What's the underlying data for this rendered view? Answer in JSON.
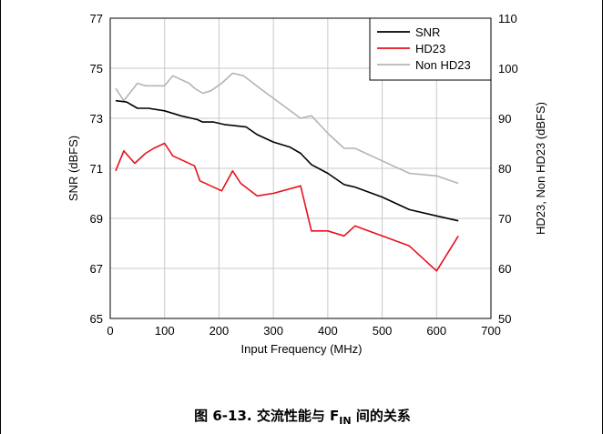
{
  "caption": {
    "prefix": "图 6-13. 交流性能与 F",
    "subscript": "IN",
    "suffix": " 间的关系"
  },
  "chart_data": {
    "type": "line",
    "xlabel": "Input Frequency (MHz)",
    "ylabel_left": "SNR (dBFS)",
    "ylabel_right": "HD23, Non HD23 (dBFS)",
    "xlim": [
      0,
      700
    ],
    "ylim_left": [
      65,
      77
    ],
    "ylim_right": [
      50,
      110
    ],
    "x_ticks": [
      0,
      100,
      200,
      300,
      400,
      500,
      600,
      700
    ],
    "y_ticks_left": [
      65,
      67,
      69,
      71,
      73,
      75,
      77
    ],
    "y_ticks_right": [
      50,
      60,
      70,
      80,
      90,
      100,
      110
    ],
    "grid": true,
    "legend_position": "top-right",
    "series": [
      {
        "name": "SNR",
        "axis": "left",
        "color": "#000000",
        "x": [
          10,
          30,
          50,
          70,
          100,
          130,
          160,
          170,
          190,
          210,
          230,
          250,
          270,
          300,
          330,
          350,
          370,
          400,
          430,
          450,
          500,
          550,
          600,
          640
        ],
        "y": [
          73.7,
          73.65,
          73.4,
          73.4,
          73.3,
          73.1,
          72.95,
          72.85,
          72.85,
          72.75,
          72.7,
          72.65,
          72.35,
          72.05,
          71.85,
          71.6,
          71.15,
          70.8,
          70.35,
          70.25,
          69.85,
          69.35,
          69.1,
          68.9
        ]
      },
      {
        "name": "HD23",
        "axis": "right",
        "color": "#e8101c",
        "x": [
          10,
          25,
          45,
          65,
          80,
          100,
          115,
          155,
          165,
          185,
          205,
          225,
          240,
          270,
          300,
          350,
          370,
          400,
          430,
          450,
          500,
          550,
          600,
          640
        ],
        "y": [
          79.5,
          83.5,
          81,
          83,
          84,
          85,
          82.5,
          80.5,
          77.5,
          76.5,
          75.5,
          79.5,
          77,
          74.5,
          75,
          76.5,
          67.5,
          67.5,
          66.5,
          68.5,
          66.5,
          64.5,
          59.5,
          66.5
        ]
      },
      {
        "name": "Non HD23",
        "axis": "right",
        "color": "#b4b4b4",
        "x": [
          10,
          25,
          50,
          65,
          85,
          100,
          115,
          145,
          155,
          170,
          185,
          205,
          225,
          245,
          275,
          300,
          325,
          350,
          370,
          400,
          430,
          450,
          500,
          550,
          600,
          640
        ],
        "y": [
          96,
          93.5,
          97,
          96.5,
          96.5,
          96.5,
          98.5,
          97,
          96,
          95,
          95.5,
          97,
          99,
          98.5,
          96,
          94,
          92,
          90,
          90.5,
          87,
          84,
          84,
          81.5,
          79,
          78.5,
          77
        ]
      }
    ]
  }
}
